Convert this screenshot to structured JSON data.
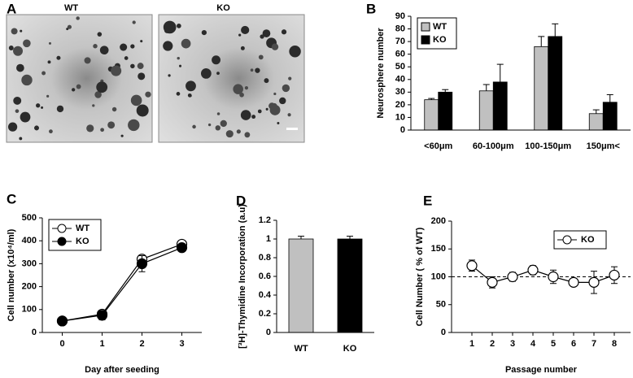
{
  "chart_data": [
    {
      "type": "image",
      "panel": "A",
      "images": [
        "WT",
        "KO"
      ]
    },
    {
      "type": "bar",
      "panel": "B",
      "ylabel": "Neurosphere number",
      "categories": [
        "<60μm",
        "60-100μm",
        "100-150μm",
        "150μm<"
      ],
      "series": [
        {
          "name": "WT",
          "color": "#c0c0c0",
          "values": [
            24,
            31,
            66,
            13
          ],
          "errors": [
            1,
            5,
            8,
            3
          ]
        },
        {
          "name": "KO",
          "color": "#000000",
          "values": [
            30,
            38,
            74,
            22
          ],
          "errors": [
            2,
            14,
            10,
            6
          ]
        }
      ],
      "ylim": [
        0,
        90
      ],
      "yticks": [
        0,
        10,
        20,
        30,
        40,
        50,
        60,
        70,
        80,
        90
      ],
      "legend": "upper left"
    },
    {
      "type": "line",
      "panel": "C",
      "xlabel": "Day after seeding",
      "ylabel": "Cell number (x10⁴/ml)",
      "x": [
        0,
        1,
        2,
        3
      ],
      "series": [
        {
          "name": "WT",
          "color": "#000000",
          "marker_fill": "#ffffff",
          "values": [
            50,
            80,
            320,
            385
          ],
          "errors": [
            3,
            15,
            15,
            12
          ]
        },
        {
          "name": "KO",
          "color": "#000000",
          "marker_fill": "#000000",
          "values": [
            50,
            75,
            300,
            370
          ],
          "errors": [
            3,
            20,
            35,
            15
          ]
        }
      ],
      "xlim": [
        -0.5,
        3.5
      ],
      "xticks": [
        0,
        1,
        2,
        3
      ],
      "ylim": [
        0,
        500
      ],
      "yticks": [
        0,
        100,
        200,
        300,
        400,
        500
      ],
      "legend": "upper left"
    },
    {
      "type": "bar",
      "panel": "D",
      "ylabel": "[³H]-Thymidine Incorporation (a.u)",
      "categories": [
        "WT",
        "KO"
      ],
      "values": [
        1,
        1
      ],
      "errors": [
        0.03,
        0.03
      ],
      "colors": [
        "#c0c0c0",
        "#000000"
      ],
      "ylim": [
        0,
        1.2
      ],
      "yticks": [
        0,
        0.2,
        0.4,
        0.6,
        0.8,
        1,
        1.2
      ]
    },
    {
      "type": "line",
      "panel": "E",
      "xlabel": "Passage number",
      "ylabel": "Cell Number ( % of WT)",
      "x": [
        1,
        2,
        3,
        4,
        5,
        6,
        7,
        8
      ],
      "series": [
        {
          "name": "KO",
          "color": "#000000",
          "marker_fill": "#ffffff",
          "values": [
            120,
            90,
            100,
            112,
            100,
            90,
            90,
            103
          ],
          "errors": [
            10,
            10,
            8,
            8,
            12,
            6,
            20,
            15
          ]
        }
      ],
      "xlim": [
        0,
        8.8
      ],
      "xticks": [
        1,
        2,
        3,
        4,
        5,
        6,
        7,
        8
      ],
      "ylim": [
        0,
        200
      ],
      "yticks": [
        0,
        50,
        100,
        150,
        200
      ],
      "reference_line": 100,
      "legend": "upper right"
    }
  ]
}
